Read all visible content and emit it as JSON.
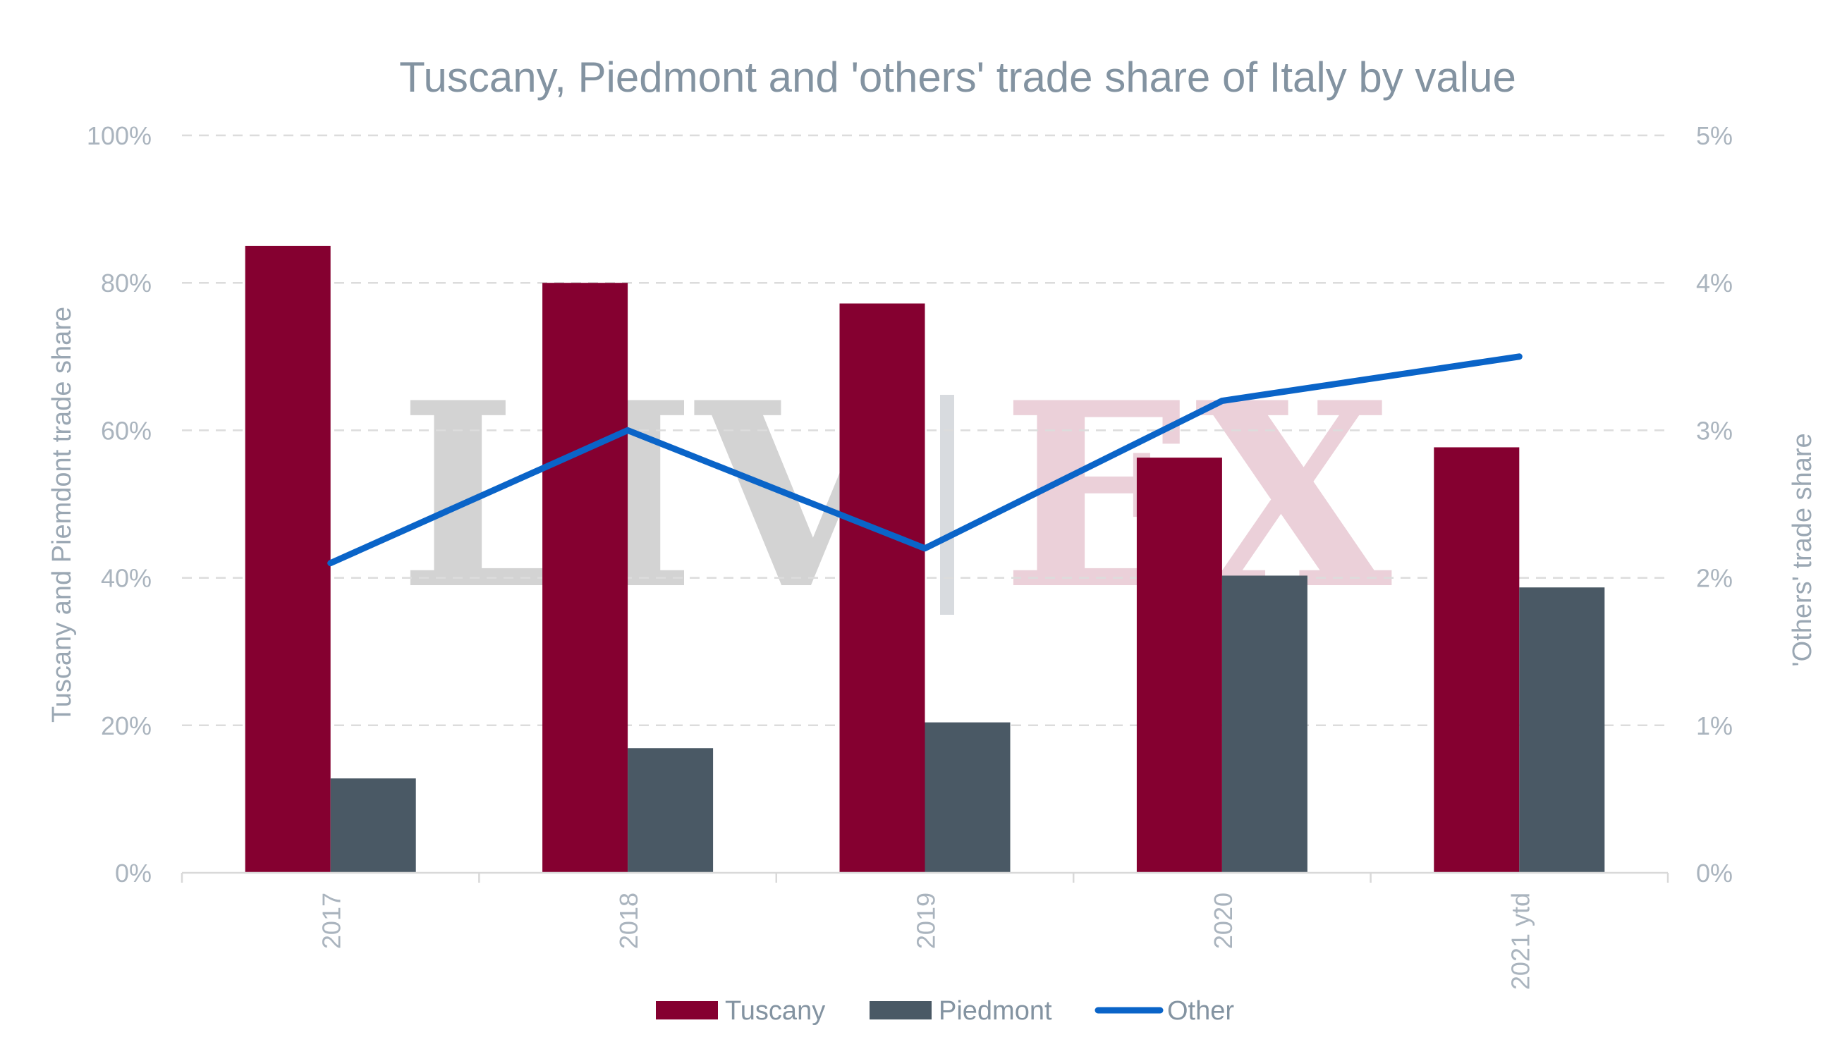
{
  "chart_data": {
    "type": "bar",
    "title": "Tuscany, Piedmont and 'others' trade share of Italy by value",
    "categories": [
      "2017",
      "2018",
      "2019",
      "2020",
      "2021 ytd"
    ],
    "series": [
      {
        "name": "Tuscany",
        "type": "bar",
        "axis": "left",
        "color": "#850030",
        "values": [
          85,
          80,
          77.2,
          56.3,
          57.7
        ]
      },
      {
        "name": "Piedmont",
        "type": "bar",
        "axis": "left",
        "color": "#4a5965",
        "values": [
          12.8,
          16.9,
          20.4,
          40.3,
          38.7
        ]
      },
      {
        "name": "Other",
        "type": "line",
        "axis": "right",
        "color": "#0a64c8",
        "values": [
          2.1,
          3.0,
          2.2,
          3.2,
          3.5
        ]
      }
    ],
    "ylabel": "Tuscany and Piemdont trade share",
    "y2label": "'Others' trade share",
    "ylim": [
      0,
      100
    ],
    "y2lim": [
      0,
      5
    ],
    "yticks": [
      "0%",
      "20%",
      "40%",
      "60%",
      "80%",
      "100%"
    ],
    "y2ticks": [
      "0%",
      "1%",
      "2%",
      "3%",
      "4%",
      "5%"
    ],
    "grid": true,
    "legend_position": "bottom",
    "watermark": "LIV|EX"
  }
}
